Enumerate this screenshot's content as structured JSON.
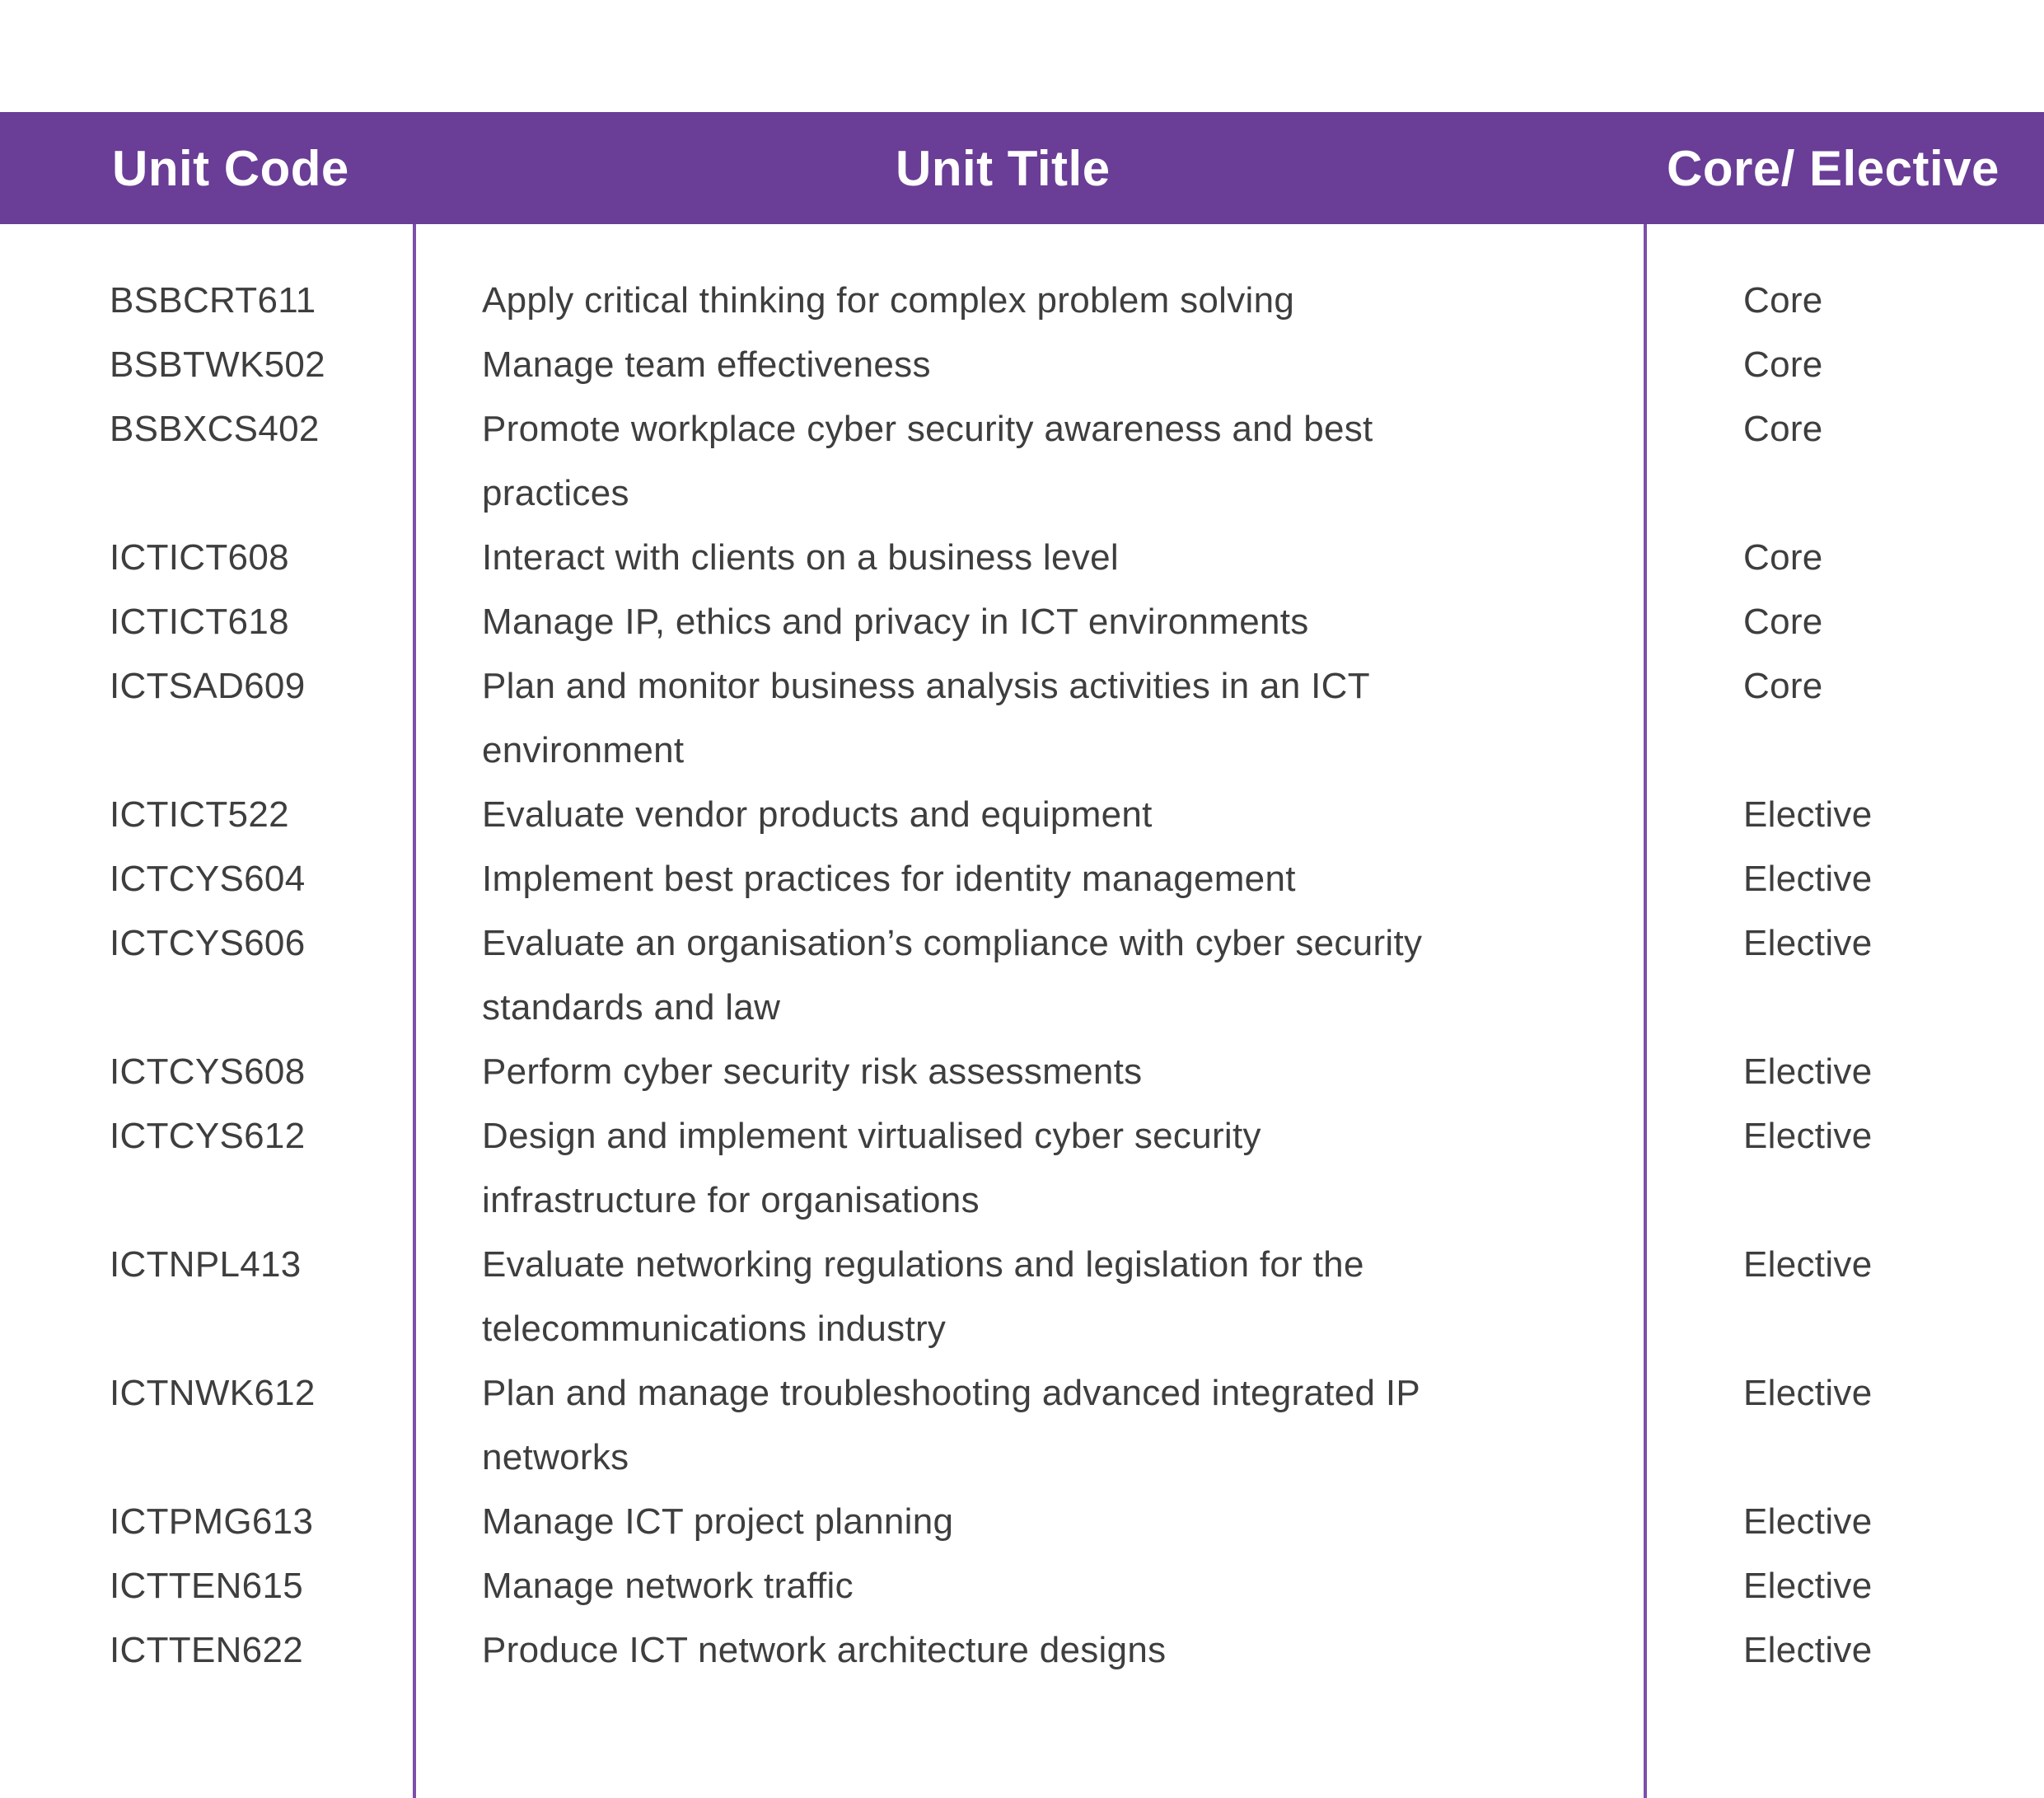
{
  "colors": {
    "header_bg": "#6A3D97",
    "divider": "#7B4FAB",
    "header_text": "#ffffff",
    "body_text": "#3E3E3E",
    "page_bg": "#ffffff"
  },
  "table": {
    "headers": [
      {
        "label": "Unit Code"
      },
      {
        "label": "Unit Title"
      },
      {
        "label": "Core/ Elective"
      }
    ],
    "rows": [
      {
        "code": "BSBCRT611",
        "title": "Apply critical thinking for complex problem solving",
        "type": "Core"
      },
      {
        "code": "BSBTWK502",
        "title": "Manage team effectiveness",
        "type": "Core"
      },
      {
        "code": "BSBXCS402",
        "title": "Promote workplace cyber security awareness and best\npractices",
        "type": "Core"
      },
      {
        "code": "ICTICT608",
        "title": "Interact with clients on a business level",
        "type": "Core"
      },
      {
        "code": "ICTICT618",
        "title": "Manage IP, ethics and privacy in ICT environments",
        "type": "Core"
      },
      {
        "code": "ICTSAD609",
        "title": "Plan and monitor business analysis activities in an ICT\nenvironment",
        "type": "Core"
      },
      {
        "code": "ICTICT522",
        "title": "Evaluate vendor products and equipment",
        "type": "Elective"
      },
      {
        "code": "ICTCYS604",
        "title": "Implement best practices for identity management",
        "type": "Elective"
      },
      {
        "code": "ICTCYS606",
        "title": "Evaluate an organisation’s compliance with cyber security\nstandards and law",
        "type": "Elective"
      },
      {
        "code": "ICTCYS608",
        "title": "Perform cyber security risk assessments",
        "type": "Elective"
      },
      {
        "code": "ICTCYS612",
        "title": "Design and implement virtualised cyber security\ninfrastructure for organisations",
        "type": "Elective"
      },
      {
        "code": "ICTNPL413",
        "title": "Evaluate networking regulations and legislation for the\ntelecommunications industry",
        "type": "Elective"
      },
      {
        "code": "ICTNWK612",
        "title": "Plan and manage troubleshooting advanced integrated IP\nnetworks",
        "type": "Elective"
      },
      {
        "code": "ICTPMG613",
        "title": "Manage ICT project planning",
        "type": "Elective"
      },
      {
        "code": "ICTTEN615",
        "title": "Manage network traffic",
        "type": "Elective"
      },
      {
        "code": "ICTTEN622",
        "title": "Produce ICT network architecture designs",
        "type": "Elective"
      }
    ]
  }
}
